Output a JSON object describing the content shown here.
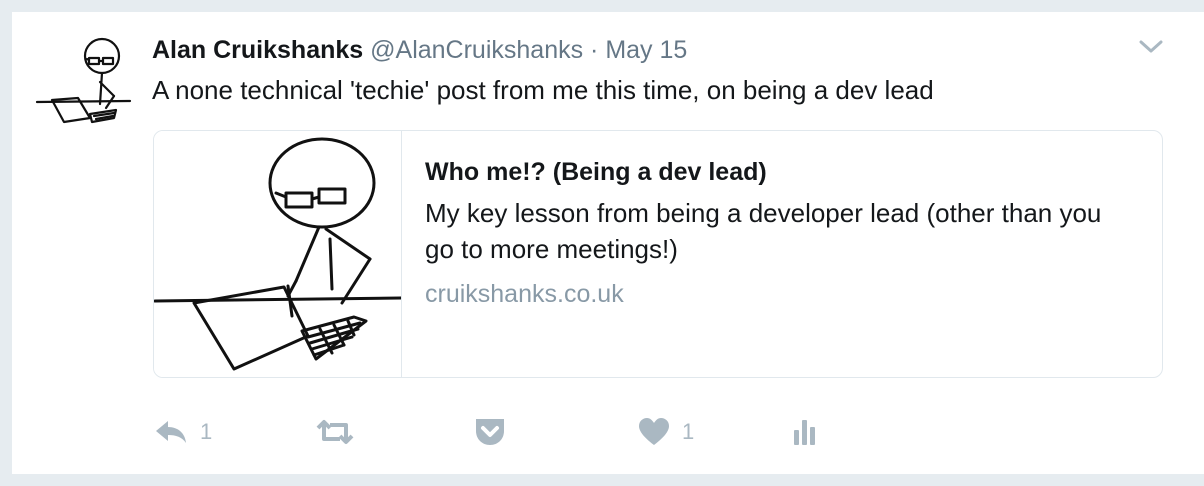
{
  "tweet": {
    "author_name": "Alan Cruikshanks",
    "meta": "@AlanCruikshanks · May 15",
    "text": "A none technical 'techie' post from me this time, on being a dev lead",
    "card": {
      "title": "Who me!? (Being a dev lead)",
      "description": "My key lesson from being a developer lead (other than you go to more meetings!)",
      "domain": "cruikshanks.co.uk"
    },
    "actions": {
      "reply_count": "1",
      "like_count": "1"
    }
  },
  "colors": {
    "background": "#e6ecf0",
    "text": "#14171a",
    "secondary": "#657786",
    "url": "#8899a6",
    "action_icon": "#aab8c2",
    "border": "#e1e8ed"
  },
  "icons": [
    "avatar-drawing",
    "chevron-down-icon",
    "reply-icon",
    "retweet-icon",
    "pocket-icon",
    "heart-icon",
    "analytics-icon"
  ]
}
